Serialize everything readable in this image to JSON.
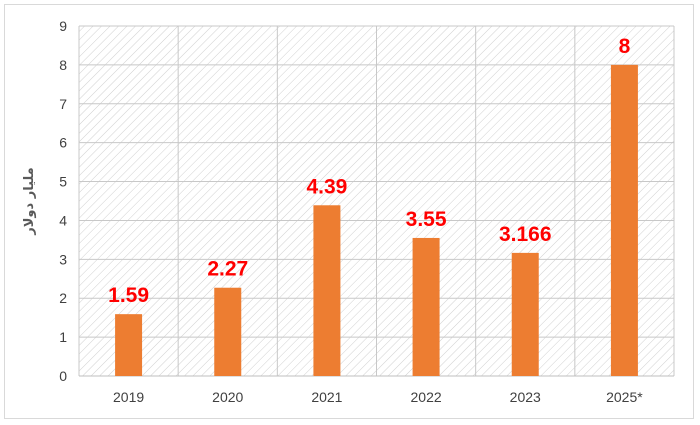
{
  "chart_data": {
    "type": "bar",
    "title": "",
    "xlabel": "",
    "ylabel": "مليار دولار",
    "categories": [
      "2019",
      "2020",
      "2021",
      "2022",
      "2023",
      "2025*"
    ],
    "values": [
      1.59,
      2.27,
      4.39,
      3.55,
      3.166,
      8
    ],
    "data_labels": [
      "1.59",
      "2.27",
      "4.39",
      "3.55",
      "3.166",
      "8"
    ],
    "ylim": [
      0,
      9
    ],
    "yticks": [
      0,
      1,
      2,
      3,
      4,
      5,
      6,
      7,
      8,
      9
    ],
    "grid": true,
    "plot_pattern": "diagonal-hatch",
    "bar_color": "#ed7d31",
    "label_color": "#ff0000",
    "legend": "none"
  }
}
